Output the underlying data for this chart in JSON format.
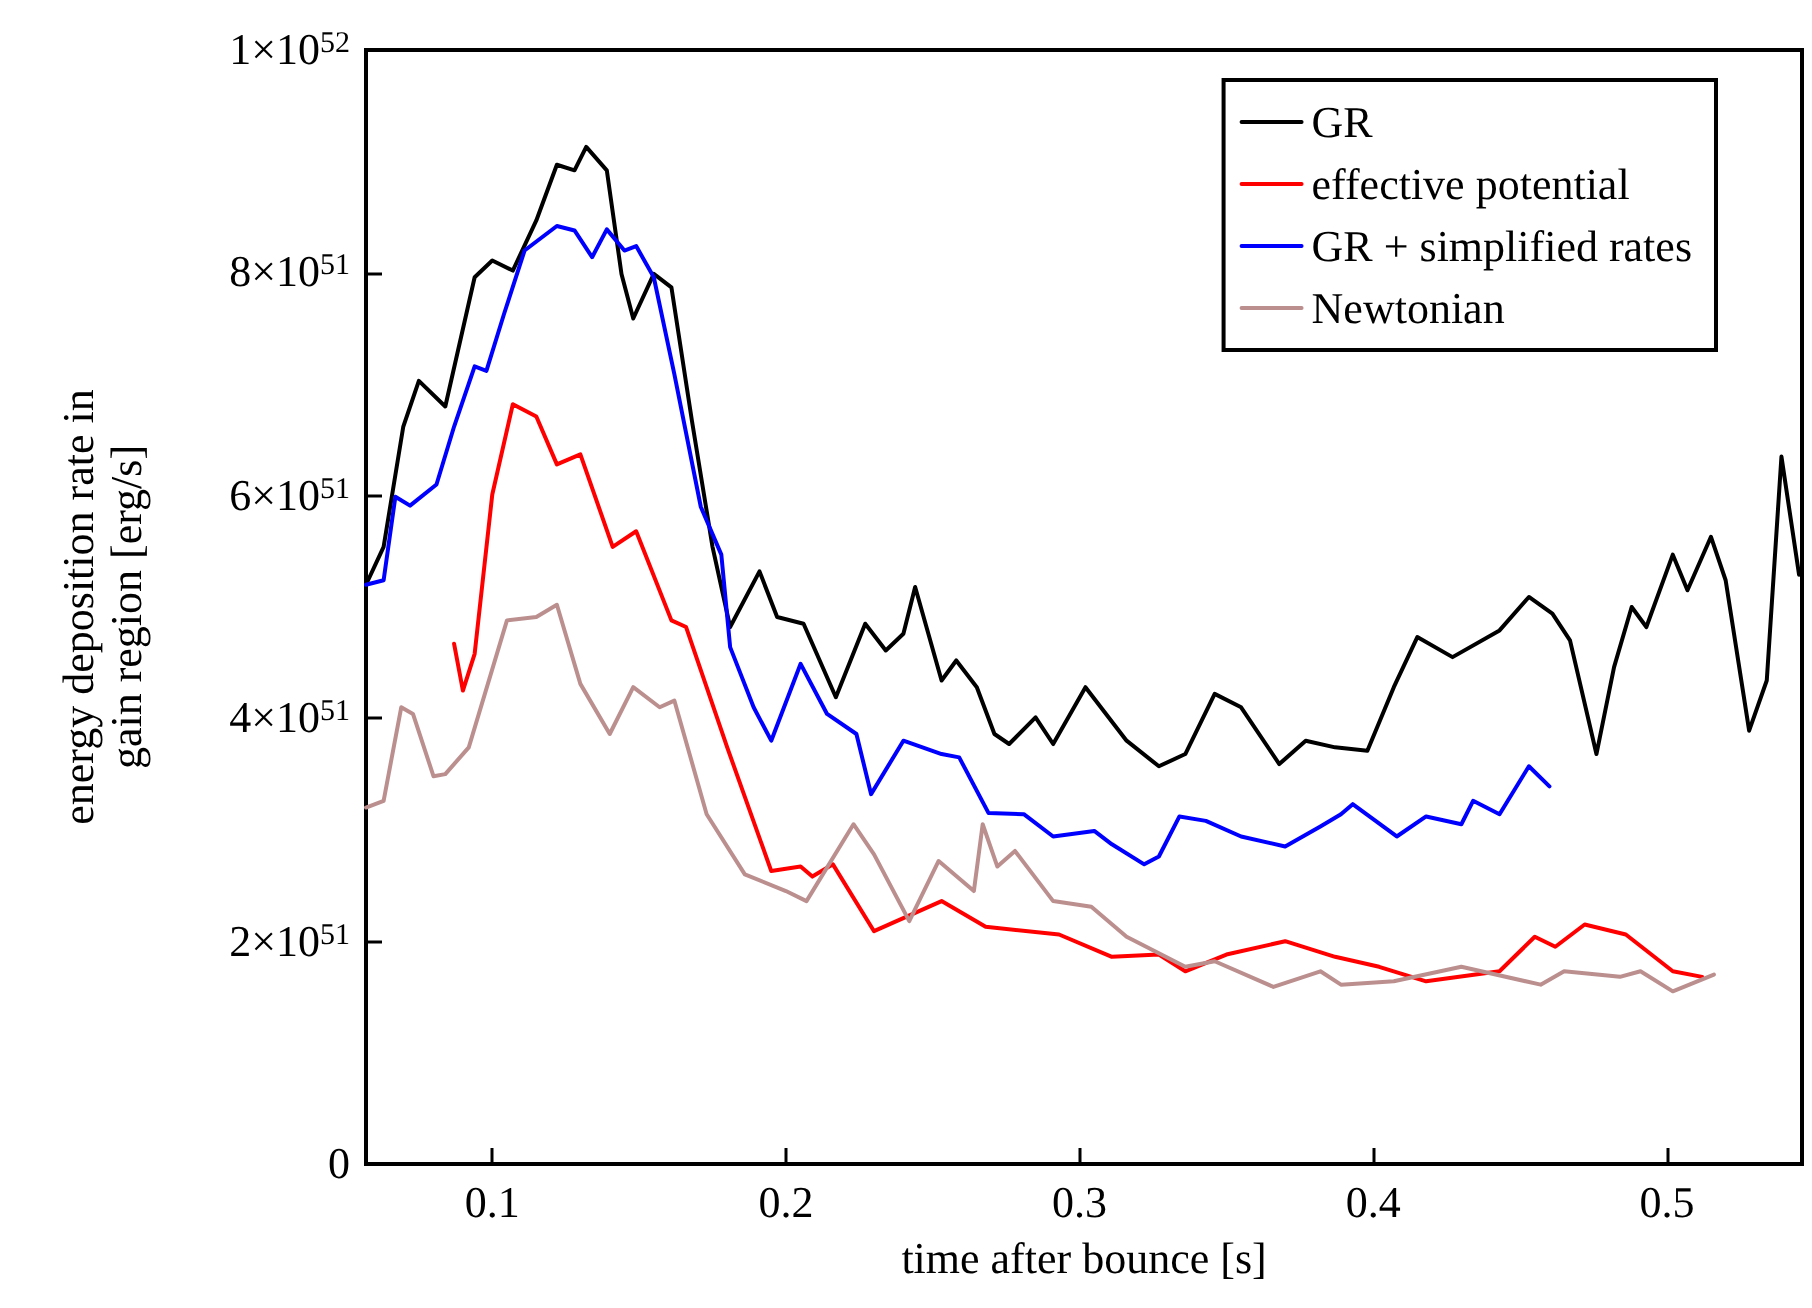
{
  "chart_data": {
    "type": "line",
    "xlabel": "time after bounce [s]",
    "ylabel": "energy deposition rate in\ngain region [erg/s]",
    "xlim": [
      0.057,
      0.546
    ],
    "xticks": [
      0.1,
      0.2,
      0.3,
      0.4,
      0.5
    ],
    "ylim": [
      0,
      1e+52
    ],
    "yticks": [
      0,
      {
        "value": 2e+51,
        "label": "2×10$^{51}$"
      },
      {
        "value": 4e+51,
        "label": "4×10$^{51}$"
      },
      {
        "value": 6e+51,
        "label": "6×10$^{51}$"
      },
      {
        "value": 8e+51,
        "label": "8×10$^{51}$"
      },
      {
        "value": 1e+52,
        "label": "1×10$^{52}$"
      }
    ],
    "grid": false,
    "legend": "top right",
    "line_style": "solid",
    "series": [
      {
        "name": "GR",
        "color": "#000000",
        "x": [
          0.057,
          0.063,
          0.0697,
          0.075,
          0.084,
          0.094,
          0.1,
          0.107,
          0.115,
          0.122,
          0.128,
          0.132,
          0.139,
          0.144,
          0.148,
          0.155,
          0.161,
          0.168,
          0.175,
          0.181,
          0.191,
          0.197,
          0.206,
          0.217,
          0.227,
          0.234,
          0.24,
          0.244,
          0.253,
          0.258,
          0.265,
          0.271,
          0.276,
          0.285,
          0.291,
          0.302,
          0.316,
          0.327,
          0.336,
          0.346,
          0.355,
          0.368,
          0.377,
          0.387,
          0.398,
          0.407,
          0.415,
          0.427,
          0.443,
          0.453,
          0.461,
          0.467,
          0.476,
          0.482,
          0.488,
          0.493,
          0.502,
          0.507,
          0.515,
          0.52,
          0.528,
          0.534,
          0.539,
          0.545
        ],
        "values": [
          5.2e+51,
          5.54e+51,
          6.62e+51,
          7.03e+51,
          6.8e+51,
          7.96e+51,
          8.11e+51,
          8.02e+51,
          8.47e+51,
          8.97e+51,
          8.92e+51,
          9.13e+51,
          8.92e+51,
          7.99e+51,
          7.59e+51,
          7.99e+51,
          7.87e+51,
          6.67e+51,
          5.54e+51,
          4.82e+51,
          5.32e+51,
          4.91e+51,
          4.85e+51,
          4.19e+51,
          4.85e+51,
          4.61e+51,
          4.76e+51,
          5.18e+51,
          4.34e+51,
          4.52e+51,
          4.28e+51,
          3.86e+51,
          3.77e+51,
          4.01e+51,
          3.77e+51,
          4.28e+51,
          3.8e+51,
          3.57e+51,
          3.68e+51,
          4.22e+51,
          4.1e+51,
          3.59e+51,
          3.8e+51,
          3.74e+51,
          3.71e+51,
          4.28e+51,
          4.73e+51,
          4.55e+51,
          4.79e+51,
          5.09e+51,
          4.94e+51,
          4.7e+51,
          3.68e+51,
          4.46e+51,
          5e+51,
          4.82e+51,
          5.47e+51,
          5.15e+51,
          5.63e+51,
          5.24e+51,
          3.89e+51,
          4.34e+51,
          6.35e+51,
          5.29e+51
        ]
      },
      {
        "name": "effective potential",
        "color": "#ff0000",
        "x": [
          0.087,
          0.09,
          0.094,
          0.1,
          0.107,
          0.115,
          0.122,
          0.13,
          0.141,
          0.149,
          0.161,
          0.166,
          0.18,
          0.195,
          0.205,
          0.209,
          0.216,
          0.23,
          0.253,
          0.268,
          0.293,
          0.311,
          0.327,
          0.336,
          0.35,
          0.37,
          0.387,
          0.402,
          0.418,
          0.443,
          0.455,
          0.462,
          0.472,
          0.486,
          0.502,
          0.512
        ],
        "values": [
          4.67e+51,
          4.25e+51,
          4.58e+51,
          6.01e+51,
          6.82e+51,
          6.71e+51,
          6.28e+51,
          6.37e+51,
          5.54e+51,
          5.68e+51,
          4.88e+51,
          4.82e+51,
          3.74e+51,
          2.63e+51,
          2.67e+51,
          2.58e+51,
          2.69e+51,
          2.09e+51,
          2.36e+51,
          2.13e+51,
          2.06e+51,
          1.86e+51,
          1.88e+51,
          1.73e+51,
          1.88e+51,
          2e+51,
          1.86e+51,
          1.77e+51,
          1.64e+51,
          1.73e+51,
          2.04e+51,
          1.95e+51,
          2.15e+51,
          2.06e+51,
          1.73e+51,
          1.68e+51
        ]
      },
      {
        "name": "GR + simplified rates",
        "color": "#0000ff",
        "x": [
          0.057,
          0.063,
          0.067,
          0.072,
          0.081,
          0.087,
          0.094,
          0.098,
          0.104,
          0.111,
          0.122,
          0.128,
          0.134,
          0.139,
          0.145,
          0.149,
          0.155,
          0.162,
          0.171,
          0.178,
          0.181,
          0.189,
          0.195,
          0.205,
          0.214,
          0.224,
          0.229,
          0.24,
          0.253,
          0.259,
          0.269,
          0.281,
          0.291,
          0.305,
          0.311,
          0.322,
          0.327,
          0.334,
          0.343,
          0.355,
          0.37,
          0.382,
          0.389,
          0.393,
          0.408,
          0.418,
          0.43,
          0.434,
          0.443,
          0.453,
          0.46
        ],
        "values": [
          5.2e+51,
          5.24e+51,
          5.99e+51,
          5.91e+51,
          6.1e+51,
          6.62e+51,
          7.16e+51,
          7.12e+51,
          7.63e+51,
          8.2e+51,
          8.42e+51,
          8.38e+51,
          8.14e+51,
          8.39e+51,
          8.2e+51,
          8.24e+51,
          7.96e+51,
          7.09e+51,
          5.9e+51,
          5.47e+51,
          4.64e+51,
          4.1e+51,
          3.8e+51,
          4.49e+51,
          4.04e+51,
          3.86e+51,
          3.32e+51,
          3.8e+51,
          3.68e+51,
          3.65e+51,
          3.15e+51,
          3.14e+51,
          2.94e+51,
          2.99e+51,
          2.87e+51,
          2.69e+51,
          2.76e+51,
          3.12e+51,
          3.08e+51,
          2.94e+51,
          2.85e+51,
          3.03e+51,
          3.14e+51,
          3.23e+51,
          2.94e+51,
          3.12e+51,
          3.05e+51,
          3.26e+51,
          3.14e+51,
          3.57e+51,
          3.39e+51
        ]
      },
      {
        "name": "Newtonian",
        "color": "#bc8f8f",
        "x": [
          0.057,
          0.063,
          0.069,
          0.073,
          0.08,
          0.084,
          0.092,
          0.105,
          0.115,
          0.122,
          0.13,
          0.14,
          0.148,
          0.157,
          0.162,
          0.173,
          0.186,
          0.2,
          0.207,
          0.223,
          0.23,
          0.242,
          0.252,
          0.264,
          0.267,
          0.272,
          0.278,
          0.291,
          0.304,
          0.316,
          0.336,
          0.346,
          0.366,
          0.382,
          0.389,
          0.407,
          0.43,
          0.457,
          0.465,
          0.484,
          0.491,
          0.502,
          0.516
        ],
        "values": [
          3.2e+51,
          3.26e+51,
          4.1e+51,
          4.04e+51,
          3.48e+51,
          3.5e+51,
          3.74e+51,
          4.88e+51,
          4.91e+51,
          5.02e+51,
          4.31e+51,
          3.86e+51,
          4.28e+51,
          4.1e+51,
          4.16e+51,
          3.14e+51,
          2.6e+51,
          2.45e+51,
          2.36e+51,
          3.05e+51,
          2.78e+51,
          2.18e+51,
          2.72e+51,
          2.45e+51,
          3.05e+51,
          2.67e+51,
          2.81e+51,
          2.36e+51,
          2.31e+51,
          2.04e+51,
          1.77e+51,
          1.82e+51,
          1.59e+51,
          1.73e+51,
          1.61e+51,
          1.64e+51,
          1.77e+51,
          1.61e+51,
          1.73e+51,
          1.68e+51,
          1.73e+51,
          1.55e+51,
          1.7e+51
        ]
      }
    ]
  }
}
